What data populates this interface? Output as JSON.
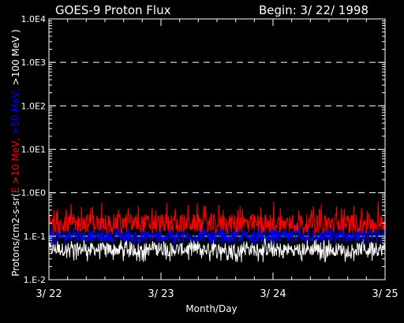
{
  "chart_data": {
    "type": "line",
    "title": "GOES-9 Proton Flux",
    "subtitle": "Begin: 3/ 22/ 1998",
    "xlabel": "Month/Day",
    "ylabel_parts": [
      {
        "text": "Protons/cm2-s-sr(",
        "color": "#ffffff"
      },
      {
        "text": "E >10 MeV,",
        "color": "#ff0000"
      },
      {
        "text": " >50 MeV,",
        "color": "#0000ff"
      },
      {
        "text": " >100 MeV )",
        "color": "#ffffff"
      }
    ],
    "y_scale": "log",
    "ylim": [
      0.01,
      10000
    ],
    "y_ticks": [
      {
        "value": 0.01,
        "label": "1.E-2"
      },
      {
        "value": 0.1,
        "label": "1.E-1"
      },
      {
        "value": 1,
        "label": "1.0E0"
      },
      {
        "value": 10,
        "label": "1.0E1"
      },
      {
        "value": 100,
        "label": "1.0E2"
      },
      {
        "value": 1000,
        "label": "1.0E3"
      },
      {
        "value": 10000,
        "label": "1.0E4"
      }
    ],
    "dashed_gridlines_at": [
      0.1,
      1,
      10,
      100,
      1000
    ],
    "x_ticks": [
      "3/ 22",
      "3/ 23",
      "3/ 24",
      "3/ 25"
    ],
    "xlim_days": [
      0,
      3
    ],
    "series": [
      {
        "name": ">10 MeV",
        "color": "#ff0000",
        "typical": 0.2,
        "min": 0.11,
        "max": 0.65
      },
      {
        "name": ">50 MeV",
        "color": "#0000ff",
        "typical": 0.1,
        "min": 0.06,
        "max": 0.18
      },
      {
        "name": ">100 MeV",
        "color": "#ffffff",
        "typical": 0.05,
        "min": 0.025,
        "max": 0.09
      }
    ]
  }
}
